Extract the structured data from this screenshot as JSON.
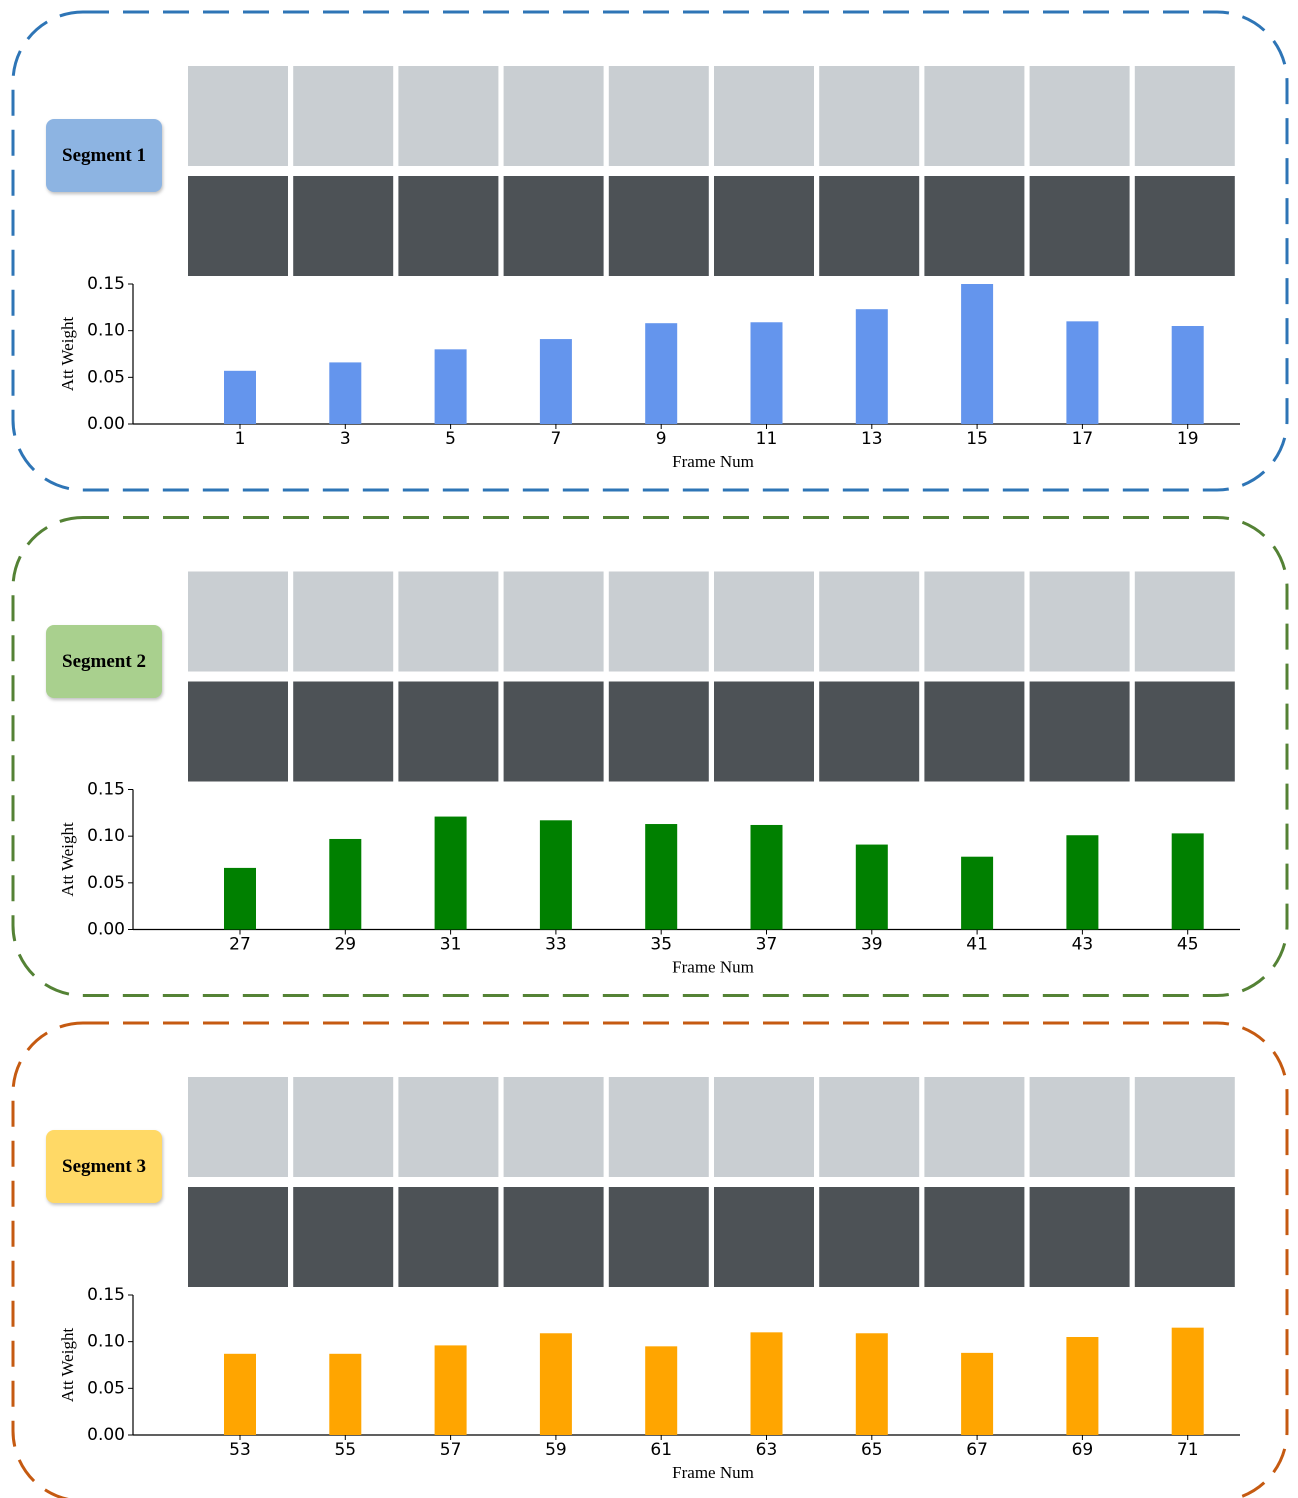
{
  "chart_data": [
    {
      "type": "bar",
      "label": "Segment 1",
      "border_color": "#2e75b6",
      "badge_color": "#8db4e2",
      "color": "#6495ed",
      "ylabel": "Att Weight",
      "xlabel": "Frame Num",
      "categories": [
        "1",
        "3",
        "5",
        "7",
        "9",
        "11",
        "13",
        "15",
        "17",
        "19"
      ],
      "values": [
        0.057,
        0.066,
        0.08,
        0.091,
        0.108,
        0.109,
        0.123,
        0.15,
        0.11,
        0.105
      ],
      "ylim": [
        0,
        0.15
      ],
      "yticks": [
        {
          "value": 0,
          "label": "0.00"
        },
        {
          "value": 0.05,
          "label": "0.05"
        },
        {
          "value": 0.1,
          "label": "0.10"
        },
        {
          "value": 0.15,
          "label": "0.15"
        }
      ]
    },
    {
      "type": "bar",
      "label": "Segment 2",
      "border_color": "#548235",
      "badge_color": "#a9d08e",
      "color": "#008000",
      "ylabel": "Att Weight",
      "xlabel": "Frame Num",
      "categories": [
        "27",
        "29",
        "31",
        "33",
        "35",
        "37",
        "39",
        "41",
        "43",
        "45"
      ],
      "values": [
        0.066,
        0.097,
        0.121,
        0.117,
        0.113,
        0.112,
        0.091,
        0.078,
        0.101,
        0.103
      ],
      "ylim": [
        0,
        0.15
      ],
      "yticks": [
        {
          "value": 0,
          "label": "0.00"
        },
        {
          "value": 0.05,
          "label": "0.05"
        },
        {
          "value": 0.1,
          "label": "0.10"
        },
        {
          "value": 0.15,
          "label": "0.15"
        }
      ]
    },
    {
      "type": "bar",
      "label": "Segment 3",
      "border_color": "#c55a11",
      "badge_color": "#ffd966",
      "color": "#ffa500",
      "ylabel": "Att Weight",
      "xlabel": "Frame Num",
      "categories": [
        "53",
        "55",
        "57",
        "59",
        "61",
        "63",
        "65",
        "67",
        "69",
        "71"
      ],
      "values": [
        0.087,
        0.087,
        0.096,
        0.109,
        0.095,
        0.11,
        0.109,
        0.088,
        0.105,
        0.115
      ],
      "ylim": [
        0,
        0.15
      ],
      "yticks": [
        {
          "value": 0,
          "label": "0.00"
        },
        {
          "value": 0.05,
          "label": "0.05"
        },
        {
          "value": 0.1,
          "label": "0.10"
        },
        {
          "value": 0.15,
          "label": "0.15"
        }
      ]
    }
  ]
}
